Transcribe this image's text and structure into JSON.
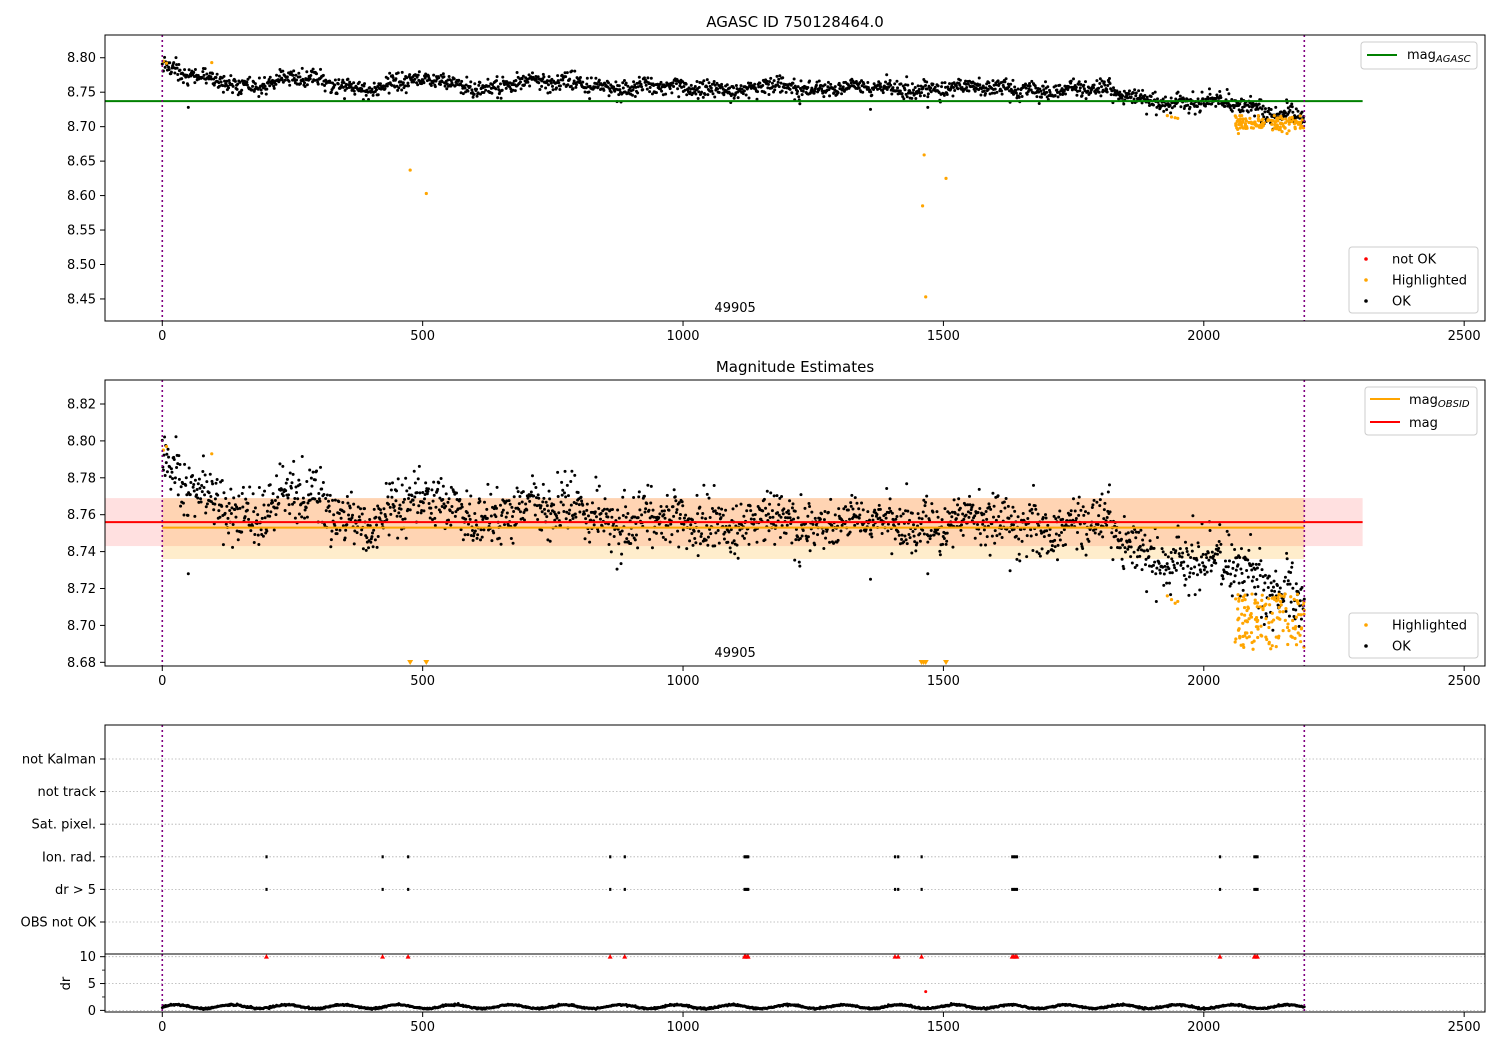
{
  "figure": {
    "panel1_title": "AGASC ID 750128464.0",
    "panel2_title": "Magnitude Estimates"
  },
  "chart_data": [
    {
      "type": "scatter",
      "title": "AGASC ID 750128464.0",
      "xlabel": "",
      "ylabel": "",
      "xlim": [
        -110,
        2540
      ],
      "ylim": [
        8.418,
        8.833
      ],
      "x_ticks": [
        0,
        500,
        1000,
        1500,
        2000,
        2500
      ],
      "y_ticks": [
        8.45,
        8.5,
        8.55,
        8.6,
        8.65,
        8.7,
        8.75,
        8.8
      ],
      "grid": false,
      "annotation": "49905",
      "reference_line": {
        "label": "mag_AGASC",
        "value": 8.737,
        "x_range": [
          -110,
          2305
        ],
        "color": "#008000"
      },
      "vertical_markers": [
        0,
        2193
      ],
      "legend_top_right": [
        "mag_AGASC"
      ],
      "legend_bottom_right": [
        {
          "label": "not OK",
          "color": "#ff0000"
        },
        {
          "label": "Highlighted",
          "color": "#ffa500"
        },
        {
          "label": "OK",
          "color": "#000000"
        }
      ],
      "series": [
        {
          "name": "OK",
          "color": "#000000",
          "n_points": 2000,
          "x_range": [
            0,
            2193
          ],
          "trend_knots": [
            [
              0,
              8.785
            ],
            [
              50,
              8.772
            ],
            [
              150,
              8.762
            ],
            [
              250,
              8.768
            ],
            [
              400,
              8.757
            ],
            [
              500,
              8.766
            ],
            [
              650,
              8.758
            ],
            [
              800,
              8.768
            ],
            [
              900,
              8.752
            ],
            [
              1000,
              8.76
            ],
            [
              1100,
              8.752
            ],
            [
              1300,
              8.758
            ],
            [
              1400,
              8.752
            ],
            [
              1500,
              8.76
            ],
            [
              1600,
              8.752
            ],
            [
              1750,
              8.758
            ],
            [
              1850,
              8.744
            ],
            [
              1950,
              8.735
            ],
            [
              2050,
              8.732
            ],
            [
              2193,
              8.718
            ]
          ]
        },
        {
          "name": "Highlighted",
          "color": "#ffa500",
          "points": [
            [
              2,
              8.795
            ],
            [
              8,
              8.792
            ],
            [
              95,
              8.793
            ],
            [
              476,
              8.637
            ],
            [
              507,
              8.603
            ],
            [
              1460,
              8.585
            ],
            [
              1463,
              8.659
            ],
            [
              1466,
              8.453
            ],
            [
              1505,
              8.625
            ],
            [
              1930,
              8.716
            ],
            [
              1938,
              8.714
            ],
            [
              1945,
              8.713
            ],
            [
              1950,
              8.712
            ]
          ],
          "cluster": {
            "x_range": [
              2060,
              2193
            ],
            "y_range": [
              8.69,
              8.716
            ],
            "n_points": 140
          }
        },
        {
          "name": "not OK",
          "color": "#ff0000",
          "points": []
        }
      ]
    },
    {
      "type": "scatter",
      "title": "Magnitude Estimates",
      "xlabel": "",
      "ylabel": "",
      "xlim": [
        -110,
        2540
      ],
      "ylim": [
        8.678,
        8.833
      ],
      "x_ticks": [
        0,
        500,
        1000,
        1500,
        2000,
        2500
      ],
      "y_ticks": [
        8.68,
        8.7,
        8.72,
        8.74,
        8.76,
        8.78,
        8.8,
        8.82
      ],
      "grid": false,
      "annotation": "49905",
      "mag_OBSID": {
        "label": "mag_OBSID",
        "value": 8.753,
        "band": [
          8.736,
          8.769
        ],
        "color": "#ffa500",
        "x_range": [
          0,
          2193
        ]
      },
      "mag": {
        "label": "mag",
        "value": 8.756,
        "band": [
          8.743,
          8.769
        ],
        "color": "#ff0000",
        "x_range": [
          -110,
          2305
        ]
      },
      "vertical_markers": [
        0,
        2193
      ],
      "legend_top_right": [
        "mag_OBSID",
        "mag"
      ],
      "legend_bottom_right": [
        {
          "label": "Highlighted",
          "color": "#ffa500"
        },
        {
          "label": "OK",
          "color": "#000000"
        }
      ],
      "series": [
        {
          "name": "OK",
          "color": "#000000",
          "n_points": 2000,
          "x_range": [
            0,
            2193
          ]
        },
        {
          "name": "Highlighted",
          "color": "#ffa500",
          "points": [
            [
              2,
              8.795
            ],
            [
              8,
              8.797
            ],
            [
              95,
              8.793
            ],
            [
              1930,
              8.716
            ],
            [
              1938,
              8.714
            ],
            [
              1945,
              8.712
            ],
            [
              1950,
              8.713
            ]
          ],
          "clipped_below_x": [
            476,
            507,
            1458,
            1462,
            1466,
            1505
          ],
          "cluster": {
            "x_range": [
              2060,
              2193
            ],
            "y_range": [
              8.687,
              8.717
            ],
            "n_points": 140
          }
        }
      ]
    },
    {
      "type": "scatter",
      "title": "",
      "xlabel": "",
      "ylabel": "",
      "xlim": [
        -110,
        2540
      ],
      "x_ticks": [
        0,
        500,
        1000,
        1500,
        2000,
        2500
      ],
      "categories": [
        "not Kalman",
        "not track",
        "Sat. pixel.",
        "Ion. rad.",
        "dr > 5",
        "OBS not OK"
      ],
      "grid": "horizontal dotted",
      "vertical_markers": [
        0,
        2193
      ],
      "events": {
        "Ion. rad.": [
          200,
          423,
          472,
          860,
          888,
          1118,
          1120,
          1123,
          1125,
          1407,
          1413,
          1458,
          1632,
          1635,
          1638,
          1641,
          2031,
          2097,
          2100,
          2103
        ],
        "dr > 5": [
          200,
          423,
          472,
          860,
          888,
          1118,
          1120,
          1123,
          1125,
          1407,
          1413,
          1458,
          1632,
          1635,
          1638,
          1641,
          2031,
          2097,
          2100,
          2103
        ]
      }
    },
    {
      "type": "scatter",
      "title": "",
      "xlabel": "",
      "ylabel": "dr",
      "xlim": [
        -110,
        2540
      ],
      "ylim": [
        -0.3,
        10.5
      ],
      "x_ticks": [
        0,
        500,
        1000,
        1500,
        2000,
        2500
      ],
      "y_ticks": [
        0,
        5,
        10
      ],
      "grid": "horizontal dotted",
      "vertical_markers": [
        0,
        2193
      ],
      "clipped_markers_color": "#ff0000",
      "clipped_markers_x": [
        200,
        423,
        472,
        860,
        888,
        1118,
        1120,
        1123,
        1125,
        1407,
        1413,
        1458,
        1632,
        1635,
        1638,
        1641,
        2031,
        2097,
        2100,
        2103
      ],
      "outliers": [
        [
          1466,
          3.5
        ]
      ],
      "series": [
        {
          "name": "dr",
          "color": "#000000",
          "n_points": 2000,
          "x_range": [
            0,
            2193
          ],
          "y_range": [
            0.2,
            1.3
          ]
        }
      ]
    }
  ]
}
